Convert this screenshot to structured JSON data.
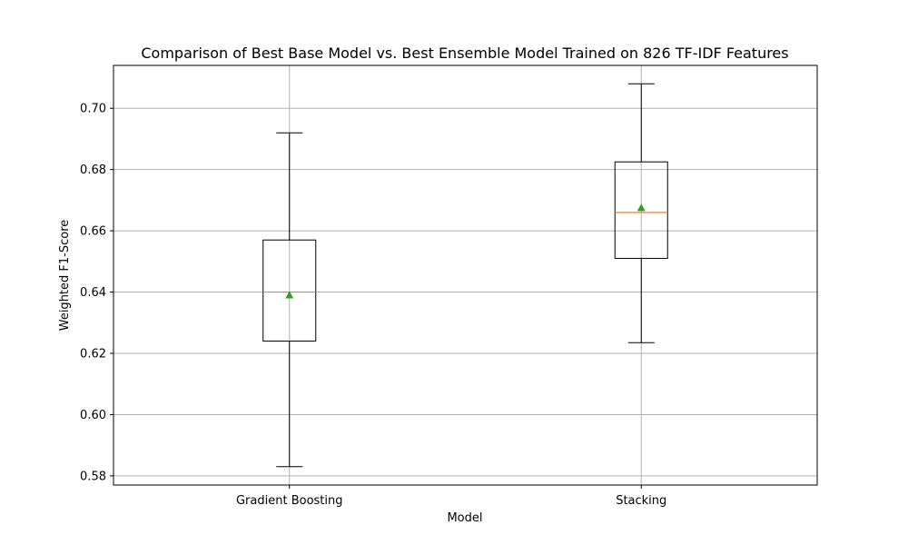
{
  "chart_data": {
    "type": "boxplot",
    "title": "Comparison of Best Base Model vs. Best Ensemble Model Trained on 826 TF-IDF Features",
    "xlabel": "Model",
    "ylabel": "Weighted F1-Score",
    "categories": [
      "Gradient Boosting",
      "Stacking"
    ],
    "ylim": [
      0.577,
      0.714
    ],
    "yticks": [
      0.58,
      0.6,
      0.62,
      0.64,
      0.66,
      0.68,
      0.7
    ],
    "ytick_labels": [
      "0.58",
      "0.60",
      "0.62",
      "0.64",
      "0.66",
      "0.68",
      "0.70"
    ],
    "grid": true,
    "boxes": [
      {
        "name": "Gradient Boosting",
        "whisker_low": 0.583,
        "q1": 0.624,
        "median": 0.64,
        "q3": 0.657,
        "whisker_high": 0.692,
        "mean": 0.639
      },
      {
        "name": "Stacking",
        "whisker_low": 0.6235,
        "q1": 0.651,
        "median": 0.666,
        "q3": 0.6825,
        "whisker_high": 0.708,
        "mean": 0.6675
      }
    ],
    "colors": {
      "box": "#000000",
      "median": "#ff7f0e",
      "mean": "#2ca02c",
      "grid": "#b0b0b0"
    }
  }
}
